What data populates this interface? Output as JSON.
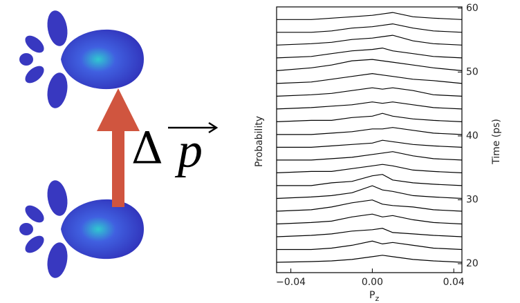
{
  "chart_data": {
    "type": "waterfall",
    "annotation": "Δ",
    "vector_symbol": "p",
    "ylabel": "Probability",
    "y2label": "Time (ps)",
    "xlabel": {
      "text": "P",
      "subscript": "z"
    },
    "xlim": [
      -0.047,
      0.044
    ],
    "xticks": [
      {
        "value": -0.04,
        "label": "−0.04"
      },
      {
        "value": 0,
        "label": "0.00"
      },
      0.04
    ],
    "ylim": [
      18.6,
      60.2
    ],
    "y2ticks": [
      20,
      30,
      40,
      50,
      60
    ],
    "color": "#000000",
    "x": [
      -0.047,
      -0.03,
      -0.02,
      -0.01,
      0,
      0.005,
      0.01,
      0.02,
      0.03,
      0.044
    ],
    "series": [
      {
        "time": 20,
        "values": [
          0.1,
          0.15,
          0.2,
          0.3,
          0.5,
          0.6,
          0.5,
          0.3,
          0.2,
          0.1
        ]
      },
      {
        "time": 22,
        "values": [
          0.1,
          0.1,
          0.2,
          0.4,
          0.7,
          0.5,
          0.6,
          0.4,
          0.2,
          0.1
        ]
      },
      {
        "time": 24,
        "values": [
          0.1,
          0.2,
          0.3,
          0.5,
          0.6,
          0.7,
          0.4,
          0.3,
          0.2,
          0.1
        ]
      },
      {
        "time": 26,
        "values": [
          0.1,
          0.2,
          0.3,
          0.6,
          0.8,
          0.6,
          0.7,
          0.4,
          0.2,
          0.1
        ]
      },
      {
        "time": 28,
        "values": [
          0.1,
          0.2,
          0.4,
          0.7,
          0.9,
          0.6,
          0.5,
          0.4,
          0.2,
          0.1
        ]
      },
      {
        "time": 30,
        "values": [
          0.1,
          0.2,
          0.3,
          0.5,
          1.0,
          0.7,
          0.6,
          0.3,
          0.2,
          0.1
        ]
      },
      {
        "time": 32,
        "values": [
          0.1,
          0.1,
          0.3,
          0.4,
          0.8,
          0.9,
          0.5,
          0.3,
          0.2,
          0.1
        ]
      },
      {
        "time": 34,
        "values": [
          0.1,
          0.2,
          0.2,
          0.4,
          0.6,
          0.7,
          0.6,
          0.3,
          0.2,
          0.1
        ]
      },
      {
        "time": 36,
        "values": [
          0.1,
          0.1,
          0.2,
          0.3,
          0.5,
          0.6,
          0.7,
          0.4,
          0.2,
          0.1
        ]
      },
      {
        "time": 38,
        "values": [
          0.1,
          0.1,
          0.2,
          0.3,
          0.4,
          0.6,
          0.5,
          0.3,
          0.2,
          0.1
        ]
      },
      {
        "time": 40,
        "values": [
          0.1,
          0.1,
          0.2,
          0.3,
          0.5,
          0.5,
          0.6,
          0.4,
          0.2,
          0.1
        ]
      },
      {
        "time": 42,
        "values": [
          0.1,
          0.2,
          0.2,
          0.4,
          0.5,
          0.7,
          0.5,
          0.3,
          0.2,
          0.1
        ]
      },
      {
        "time": 44,
        "values": [
          0.1,
          0.2,
          0.3,
          0.4,
          0.6,
          0.5,
          0.6,
          0.4,
          0.2,
          0.1
        ]
      },
      {
        "time": 46,
        "values": [
          0.1,
          0.2,
          0.3,
          0.5,
          0.7,
          0.6,
          0.7,
          0.5,
          0.2,
          0.1
        ]
      },
      {
        "time": 48,
        "values": [
          0.1,
          0.2,
          0.4,
          0.6,
          0.8,
          0.7,
          0.6,
          0.4,
          0.3,
          0.1
        ]
      },
      {
        "time": 50,
        "values": [
          0.1,
          0.3,
          0.5,
          0.8,
          0.9,
          0.8,
          0.7,
          0.5,
          0.3,
          0.1
        ]
      },
      {
        "time": 52,
        "values": [
          0.1,
          0.2,
          0.4,
          0.6,
          0.7,
          0.8,
          0.6,
          0.4,
          0.2,
          0.1
        ]
      },
      {
        "time": 54,
        "values": [
          0.1,
          0.2,
          0.3,
          0.5,
          0.6,
          0.7,
          0.8,
          0.4,
          0.2,
          0.1
        ]
      },
      {
        "time": 56,
        "values": [
          0.1,
          0.1,
          0.2,
          0.4,
          0.5,
          0.6,
          0.7,
          0.4,
          0.2,
          0.1
        ]
      },
      {
        "time": 58,
        "values": [
          0.1,
          0.1,
          0.2,
          0.3,
          0.4,
          0.5,
          0.6,
          0.3,
          0.2,
          0.1
        ]
      }
    ]
  }
}
